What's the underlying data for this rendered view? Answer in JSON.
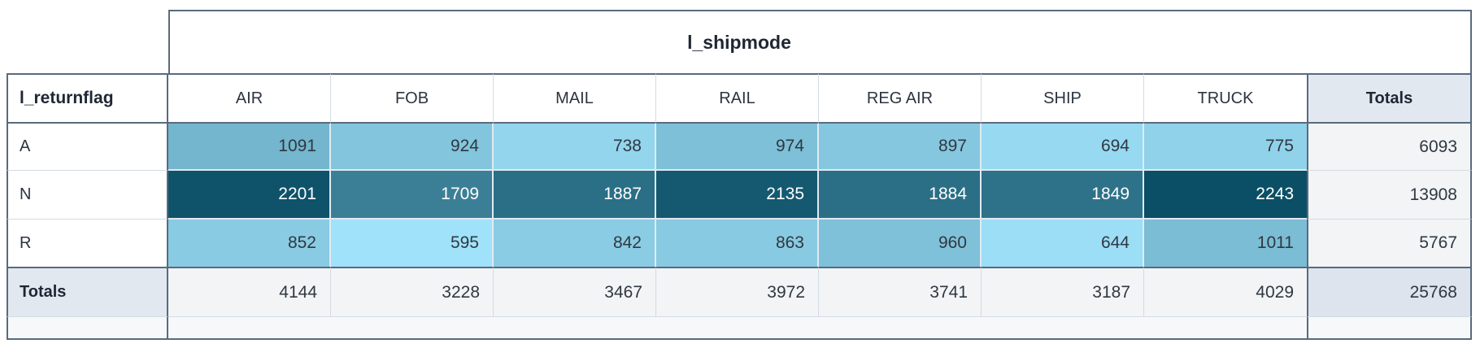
{
  "chart_data": {
    "type": "heatmap",
    "title": "l_shipmode",
    "column_dimension": "l_shipmode",
    "row_dimension": "l_returnflag",
    "totals_label": "Totals",
    "columns": [
      "AIR",
      "FOB",
      "MAIL",
      "RAIL",
      "REG AIR",
      "SHIP",
      "TRUCK"
    ],
    "rows": [
      {
        "label": "A",
        "values": [
          1091,
          924,
          738,
          974,
          897,
          694,
          775
        ],
        "total": 6093
      },
      {
        "label": "N",
        "values": [
          2201,
          1709,
          1887,
          2135,
          1884,
          1849,
          2243
        ],
        "total": 13908
      },
      {
        "label": "R",
        "values": [
          852,
          595,
          842,
          863,
          960,
          644,
          1011
        ],
        "total": 5767
      }
    ],
    "column_totals": [
      4144,
      3228,
      3467,
      3972,
      3741,
      3187,
      4029
    ],
    "grand_total": 25768,
    "heatmap_scale": {
      "min_value": 595,
      "max_value": 2243,
      "min_color": "#A0E2FA",
      "max_color": "#0A4F66",
      "light_text_threshold": 0.5
    },
    "layout_hints": {
      "legend": "none",
      "grid": "table-borders",
      "value_alignment": "right"
    }
  },
  "colors": {
    "border_dark": "#5A6A7E",
    "border_light": "#D3DCE4",
    "totals_header_bg": "#E2E8F0",
    "totals_cell_bg": "#F2F4F6",
    "grand_total_bg": "#DDE4EE",
    "footer_bg": "#F7F8FA",
    "heat_dark_text": "#2F3842",
    "heat_light_text": "#FFFFFF"
  }
}
